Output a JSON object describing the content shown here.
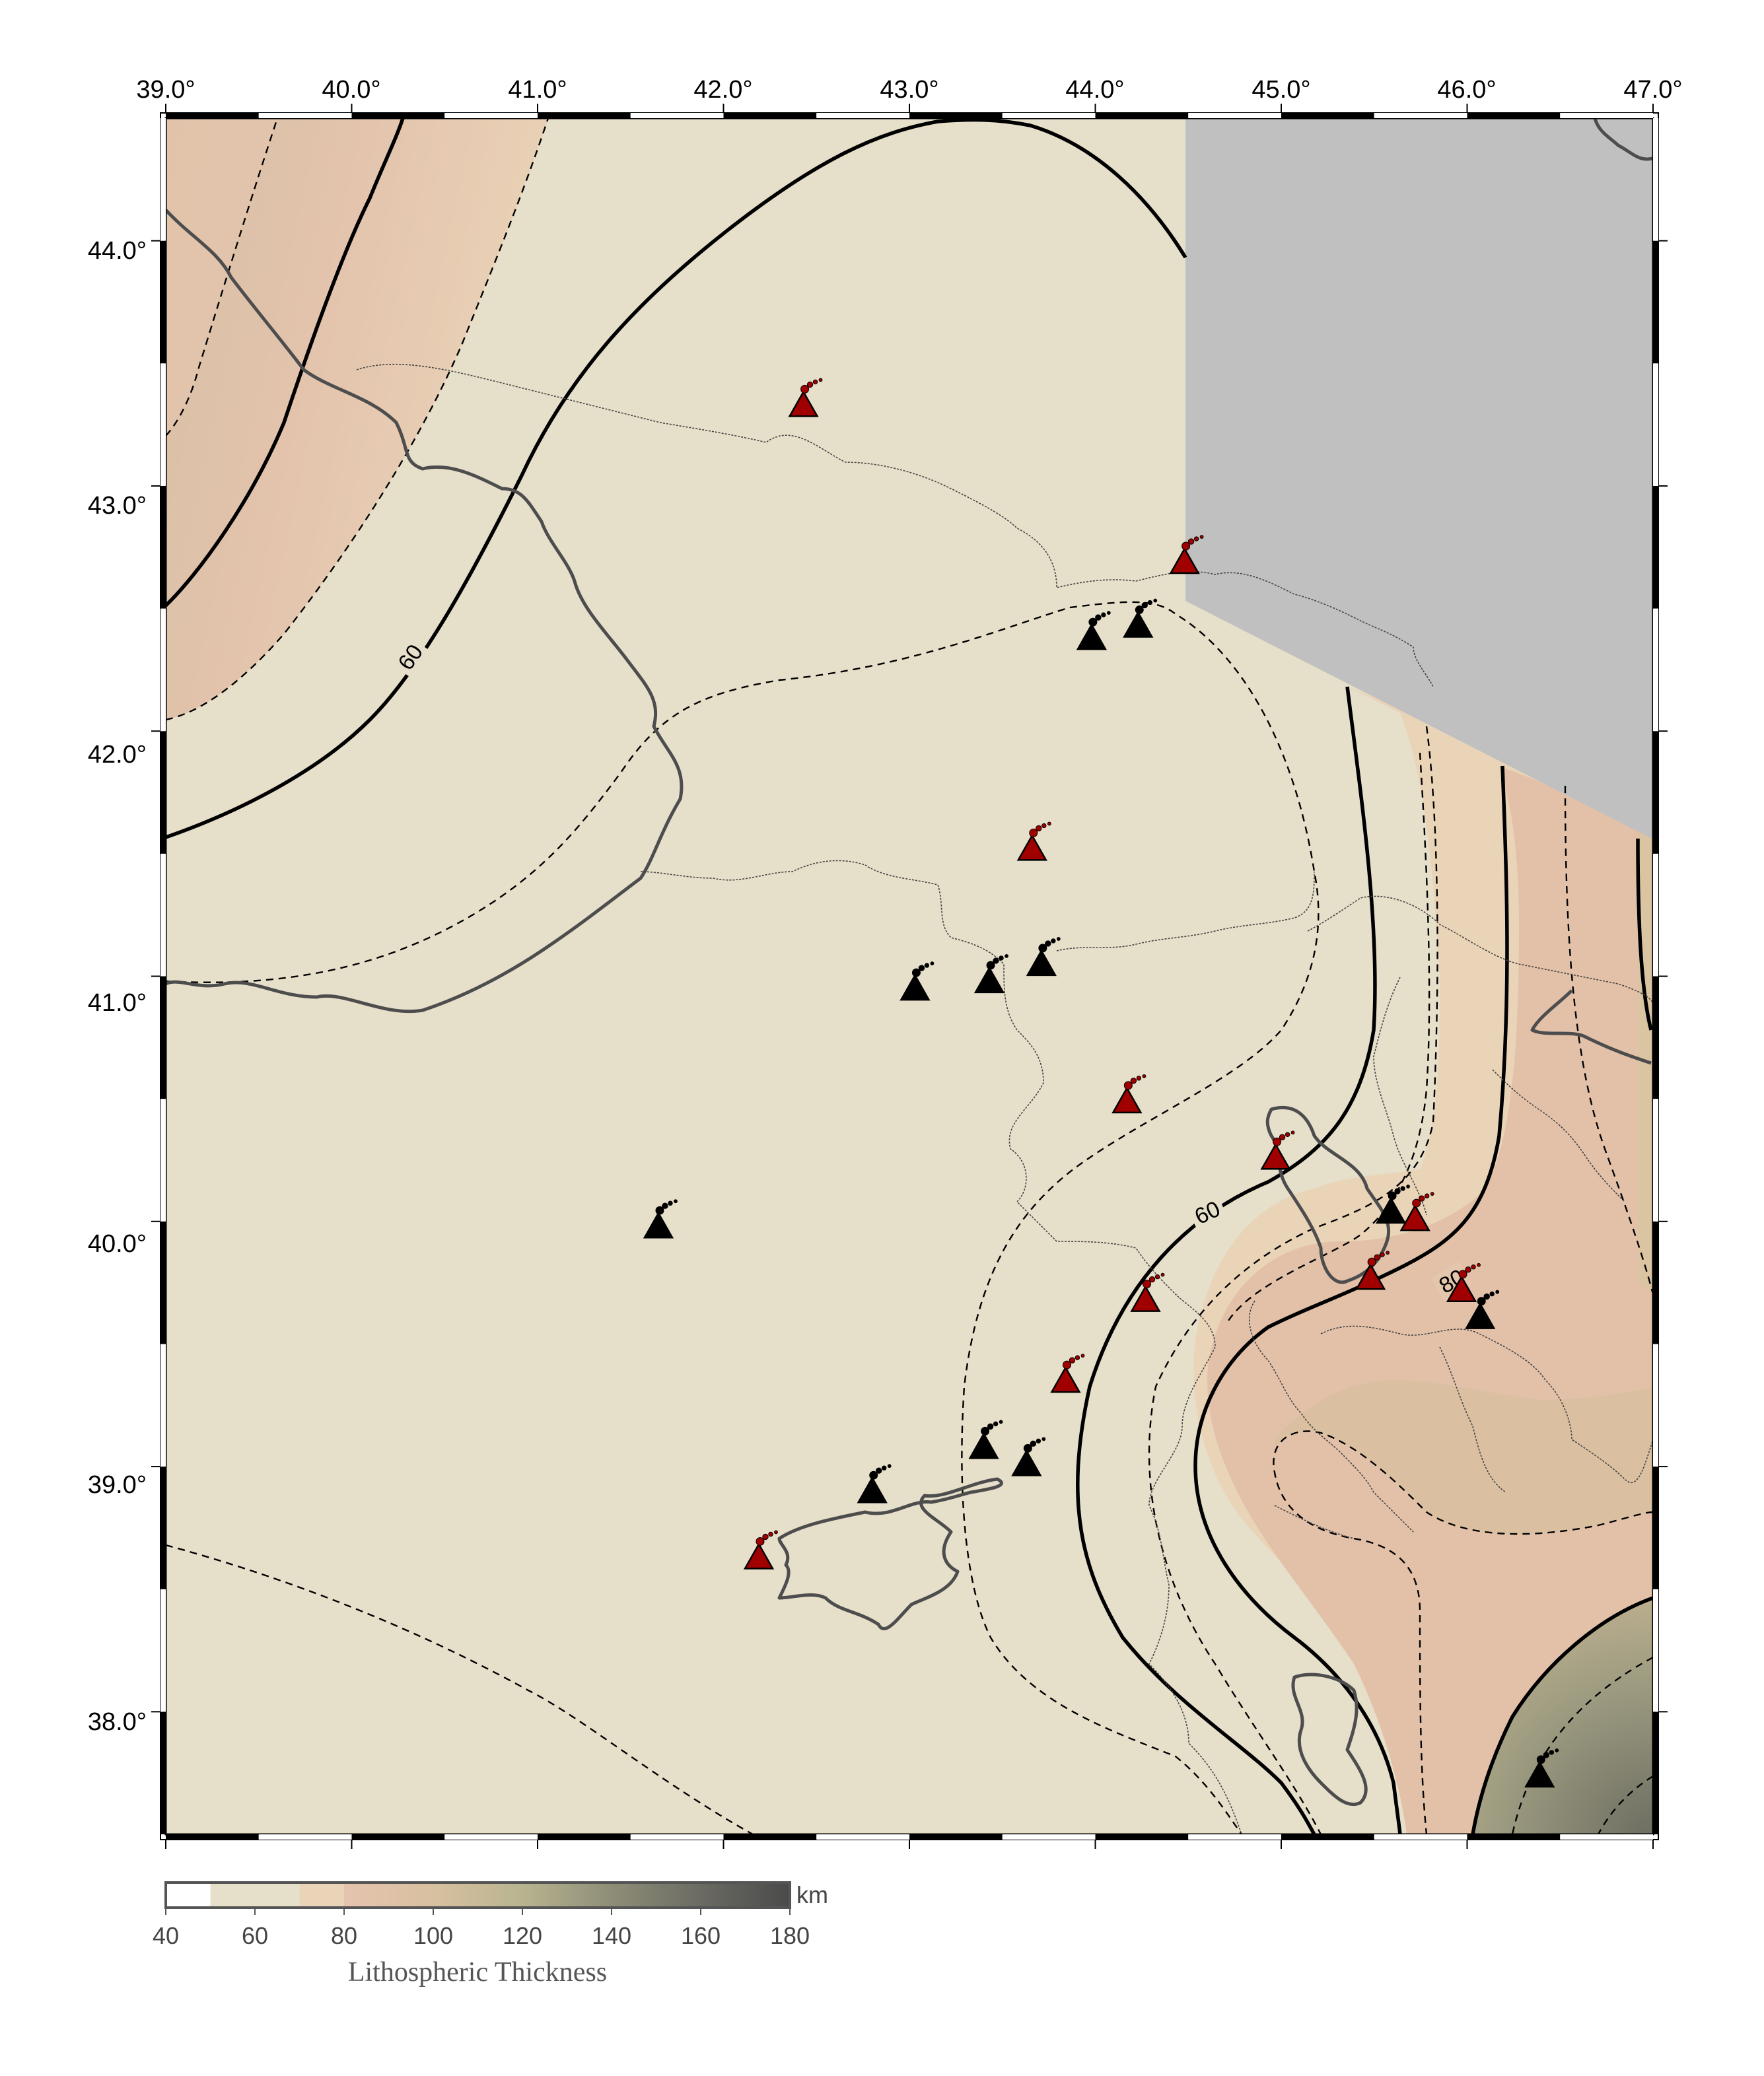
{
  "map": {
    "lon_range": [
      39.0,
      47.0
    ],
    "lat_range": [
      37.5,
      44.5
    ],
    "lon_ticks": [
      "39.0°",
      "40.0°",
      "41.0°",
      "42.0°",
      "43.0°",
      "44.0°",
      "45.0°",
      "46.0°",
      "47.0°"
    ],
    "lat_ticks": [
      "44.0°",
      "43.0°",
      "42.0°",
      "41.0°",
      "40.0°",
      "39.0°",
      "38.0°"
    ],
    "contour_labels": [
      "60",
      "60",
      "80"
    ],
    "no_data_color": "#c0c0c0",
    "thickness_colors": [
      "#ffffff",
      "#e6dfca",
      "#ead4b8",
      "#e4c0a8",
      "#b9b490",
      "#8f8f78",
      "#6a6a62",
      "#4a4a4a"
    ]
  },
  "volcanoes": {
    "red_color": "#a00000",
    "black_color": "#000000",
    "red": [
      {
        "lon": 42.43,
        "lat": 43.33
      },
      {
        "lon": 44.48,
        "lat": 42.69
      },
      {
        "lon": 43.66,
        "lat": 41.52
      },
      {
        "lon": 44.17,
        "lat": 40.49
      },
      {
        "lon": 44.97,
        "lat": 40.26
      },
      {
        "lon": 45.72,
        "lat": 40.01
      },
      {
        "lon": 45.48,
        "lat": 39.77
      },
      {
        "lon": 45.97,
        "lat": 39.72
      },
      {
        "lon": 44.27,
        "lat": 39.68
      },
      {
        "lon": 43.84,
        "lat": 39.35
      },
      {
        "lon": 42.19,
        "lat": 38.63
      }
    ],
    "black": [
      {
        "lon": 43.98,
        "lat": 42.38
      },
      {
        "lon": 44.23,
        "lat": 42.43
      },
      {
        "lon": 43.03,
        "lat": 40.95
      },
      {
        "lon": 43.43,
        "lat": 40.98
      },
      {
        "lon": 43.71,
        "lat": 41.05
      },
      {
        "lon": 41.65,
        "lat": 39.98
      },
      {
        "lon": 45.59,
        "lat": 40.04
      },
      {
        "lon": 46.07,
        "lat": 39.61
      },
      {
        "lon": 43.4,
        "lat": 39.08
      },
      {
        "lon": 43.63,
        "lat": 39.01
      },
      {
        "lon": 42.8,
        "lat": 38.9
      },
      {
        "lon": 46.39,
        "lat": 37.74
      }
    ]
  },
  "colorbar": {
    "title": "Lithospheric Thickness",
    "unit": "km",
    "min": 40,
    "max": 180,
    "ticks": [
      "40",
      "60",
      "80",
      "100",
      "120",
      "140",
      "160",
      "180"
    ]
  }
}
